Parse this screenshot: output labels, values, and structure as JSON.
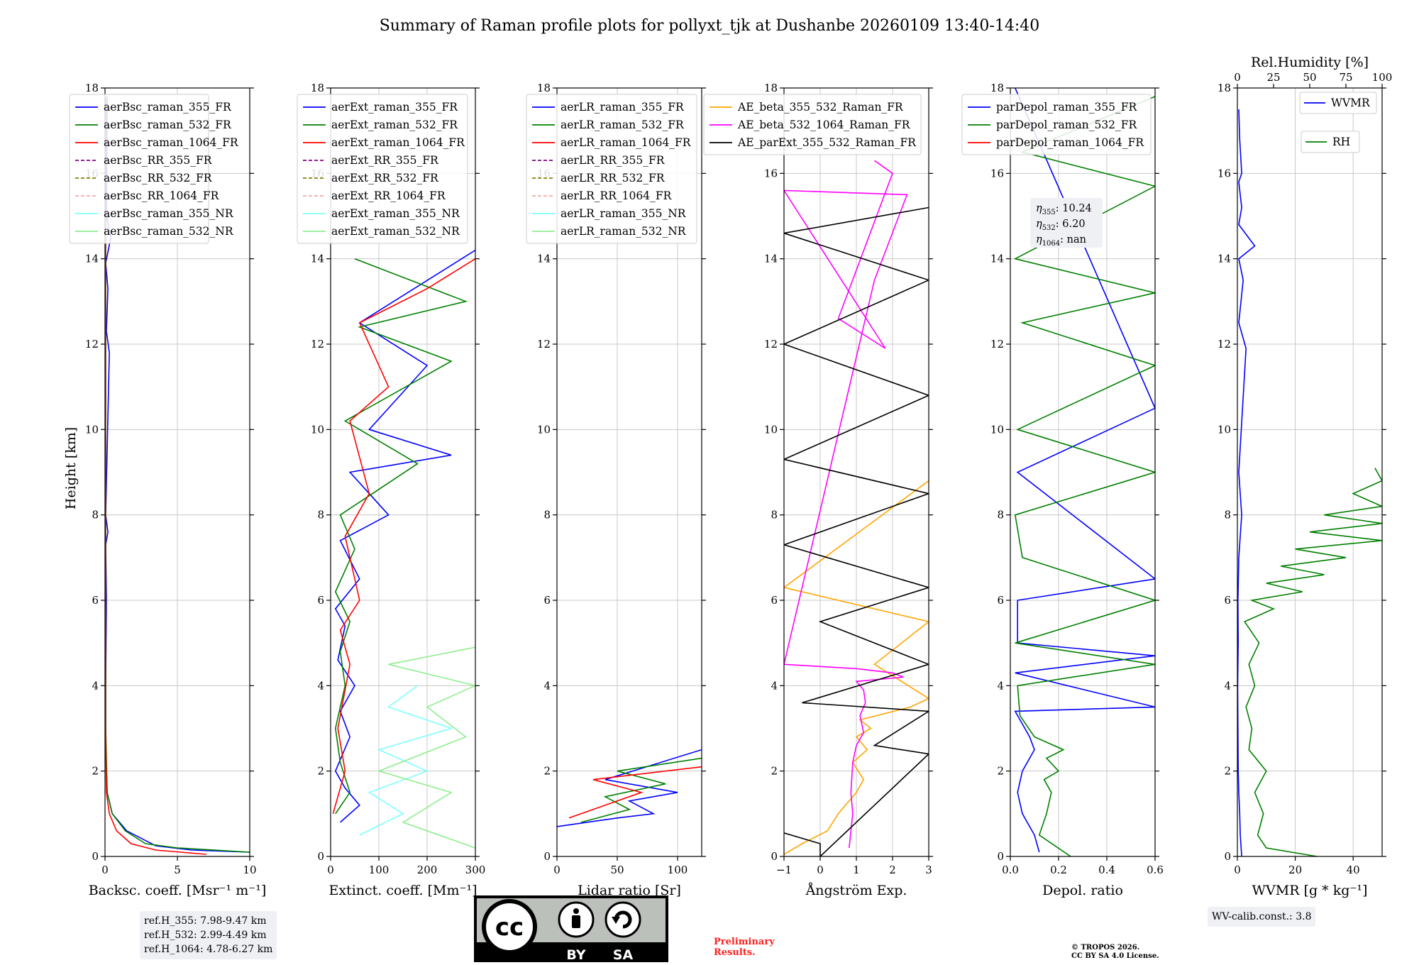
{
  "title": "Summary of Raman profile plots for pollyxt_tjk at Dushanbe 20260109 13:40-14:40",
  "y_axis_label": "Height [km]",
  "chart_data": [
    {
      "id": "bsc",
      "type": "line",
      "xlabel": "Backsc. coeff. [Msr⁻¹ m⁻¹]",
      "xlim": [
        0,
        10
      ],
      "xticks": [
        0,
        5,
        10
      ],
      "ylim": [
        0,
        18
      ],
      "yticks": [
        0,
        2,
        4,
        6,
        8,
        10,
        12,
        14,
        16,
        18
      ],
      "legend": [
        {
          "name": "aerBsc_raman_355_FR",
          "color": "#0000ff",
          "dash": false
        },
        {
          "name": "aerBsc_raman_532_FR",
          "color": "#008000",
          "dash": false
        },
        {
          "name": "aerBsc_raman_1064_FR",
          "color": "#ff0000",
          "dash": false
        },
        {
          "name": "aerBsc_RR_355_FR",
          "color": "#800080",
          "dash": true
        },
        {
          "name": "aerBsc_RR_532_FR",
          "color": "#808000",
          "dash": true
        },
        {
          "name": "aerBsc_RR_1064_FR",
          "color": "#f4a6a6",
          "dash": true
        },
        {
          "name": "aerBsc_raman_355_NR",
          "color": "#7fffff",
          "dash": false
        },
        {
          "name": "aerBsc_raman_532_NR",
          "color": "#90ee90",
          "dash": false
        }
      ],
      "series": [
        {
          "name": "aerBsc_raman_355_FR",
          "color": "#0000ff",
          "x": [
            10,
            6,
            3.5,
            1.5,
            0.5,
            0.15,
            0.05,
            0.05,
            0.1,
            0.05,
            0.2,
            0.05,
            0.3,
            0.1,
            0.2,
            0.05,
            0.4,
            0.1,
            0.15
          ],
          "y": [
            0.1,
            0.15,
            0.25,
            0.6,
            1.0,
            1.5,
            2.5,
            4.0,
            6.0,
            7.3,
            7.6,
            8.0,
            11.8,
            12.3,
            13.3,
            13.9,
            14.5,
            15.0,
            17.8
          ]
        },
        {
          "name": "aerBsc_raman_532_FR",
          "color": "#008000",
          "x": [
            10,
            5,
            2.8,
            1.4,
            0.5,
            0.15,
            0.05,
            0.05
          ],
          "y": [
            0.1,
            0.2,
            0.3,
            0.6,
            1.0,
            1.5,
            3.0,
            17.8
          ]
        },
        {
          "name": "aerBsc_raman_1064_FR",
          "color": "#ff0000",
          "x": [
            7,
            3.5,
            1.8,
            0.8,
            0.3,
            0.1,
            0.03,
            0.03
          ],
          "y": [
            0.05,
            0.15,
            0.3,
            0.6,
            1.0,
            1.5,
            3.0,
            17.8
          ]
        }
      ]
    },
    {
      "id": "ext",
      "type": "line",
      "xlabel": "Extinct. coeff. [Mm⁻¹]",
      "xlim": [
        0,
        300
      ],
      "xticks": [
        0,
        100,
        200,
        300
      ],
      "ylim": [
        0,
        18
      ],
      "yticks": [
        0,
        2,
        4,
        6,
        8,
        10,
        12,
        14,
        16,
        18
      ],
      "legend": [
        {
          "name": "aerExt_raman_355_FR",
          "color": "#0000ff",
          "dash": false
        },
        {
          "name": "aerExt_raman_532_FR",
          "color": "#008000",
          "dash": false
        },
        {
          "name": "aerExt_raman_1064_FR",
          "color": "#ff0000",
          "dash": false
        },
        {
          "name": "aerExt_RR_355_FR",
          "color": "#800080",
          "dash": true
        },
        {
          "name": "aerExt_RR_532_FR",
          "color": "#808000",
          "dash": true
        },
        {
          "name": "aerExt_RR_1064_FR",
          "color": "#f4a6a6",
          "dash": true
        },
        {
          "name": "aerExt_raman_355_NR",
          "color": "#7fffff",
          "dash": false
        },
        {
          "name": "aerExt_raman_532_NR",
          "color": "#90ee90",
          "dash": false
        }
      ],
      "series": [
        {
          "name": "aerExt_raman_355_FR",
          "color": "#0000ff",
          "x": [
            20,
            60,
            30,
            10,
            40,
            20,
            50,
            15,
            30,
            10,
            60,
            20,
            120,
            40,
            250,
            80,
            200,
            60,
            300
          ],
          "y": [
            0.8,
            1.2,
            1.6,
            2.0,
            2.8,
            3.4,
            4.0,
            4.6,
            5.4,
            5.8,
            6.5,
            7.4,
            8.0,
            9.0,
            9.4,
            10.0,
            11.5,
            12.5,
            14.2
          ]
        },
        {
          "name": "aerExt_raman_532_FR",
          "color": "#008000",
          "x": [
            10,
            40,
            20,
            10,
            30,
            20,
            40,
            10,
            50,
            20,
            180,
            30,
            250,
            60,
            280,
            50
          ],
          "y": [
            1.0,
            1.5,
            2.2,
            3.0,
            4.0,
            4.8,
            5.5,
            6.2,
            7.2,
            8.0,
            9.2,
            10.2,
            11.6,
            12.4,
            13.0,
            14.0
          ]
        },
        {
          "name": "aerExt_raman_1064_FR",
          "color": "#ff0000",
          "x": [
            5,
            30,
            15,
            40,
            20,
            60,
            30,
            80,
            40,
            120,
            60,
            200,
            300
          ],
          "y": [
            1.0,
            2.0,
            3.0,
            4.5,
            5.3,
            6.0,
            7.5,
            8.5,
            10.2,
            11.0,
            12.5,
            13.3,
            14.0
          ]
        },
        {
          "name": "aerExt_raman_355_NR",
          "color": "#7fffff",
          "x": [
            60,
            150,
            80,
            200,
            100,
            250,
            120,
            180
          ],
          "y": [
            0.5,
            1.0,
            1.5,
            2.0,
            2.5,
            3.0,
            3.5,
            4.0
          ]
        },
        {
          "name": "aerExt_raman_532_NR",
          "color": "#90ee90",
          "x": [
            300,
            150,
            250,
            100,
            280,
            200,
            300,
            120,
            300
          ],
          "y": [
            0.2,
            0.8,
            1.5,
            2.0,
            2.8,
            3.5,
            4.0,
            4.5,
            4.9
          ]
        }
      ]
    },
    {
      "id": "lr",
      "type": "line",
      "xlabel": "Lidar ratio [Sr]",
      "xlim": [
        0,
        120
      ],
      "xticks": [
        0,
        50,
        100
      ],
      "ylim": [
        0,
        18
      ],
      "yticks": [
        0,
        2,
        4,
        6,
        8,
        10,
        12,
        14,
        16,
        18
      ],
      "legend": [
        {
          "name": "aerLR_raman_355_FR",
          "color": "#0000ff",
          "dash": false
        },
        {
          "name": "aerLR_raman_532_FR",
          "color": "#008000",
          "dash": false
        },
        {
          "name": "aerLR_raman_1064_FR",
          "color": "#ff0000",
          "dash": false
        },
        {
          "name": "aerLR_RR_355_FR",
          "color": "#800080",
          "dash": true
        },
        {
          "name": "aerLR_RR_532_FR",
          "color": "#808000",
          "dash": true
        },
        {
          "name": "aerLR_RR_1064_FR",
          "color": "#f4a6a6",
          "dash": true
        },
        {
          "name": "aerLR_raman_355_NR",
          "color": "#7fffff",
          "dash": false
        },
        {
          "name": "aerLR_raman_532_NR",
          "color": "#90ee90",
          "dash": false
        }
      ],
      "series": [
        {
          "name": "aerLR_raman_355_FR",
          "color": "#0000ff",
          "x": [
            0,
            50,
            80,
            60,
            100,
            40,
            120
          ],
          "y": [
            0.7,
            0.9,
            1.0,
            1.3,
            1.5,
            1.8,
            2.5
          ]
        },
        {
          "name": "aerLR_raman_532_FR",
          "color": "#008000",
          "x": [
            20,
            60,
            40,
            90,
            50,
            120
          ],
          "y": [
            0.8,
            1.1,
            1.4,
            1.7,
            2.0,
            2.3
          ]
        },
        {
          "name": "aerLR_raman_1064_FR",
          "color": "#ff0000",
          "x": [
            10,
            40,
            70,
            30,
            120
          ],
          "y": [
            0.9,
            1.2,
            1.5,
            1.8,
            2.1
          ]
        }
      ]
    },
    {
      "id": "ae",
      "type": "line",
      "xlabel": "Ångström Exp.",
      "xlim": [
        -1,
        3
      ],
      "xticks": [
        -1,
        0,
        1,
        2,
        3
      ],
      "ylim": [
        0,
        18
      ],
      "yticks": [
        0,
        2,
        4,
        6,
        8,
        10,
        12,
        14,
        16,
        18
      ],
      "legend": [
        {
          "name": "AE_beta_355_532_Raman_FR",
          "color": "#ffa500",
          "dash": false
        },
        {
          "name": "AE_beta_532_1064_Raman_FR",
          "color": "#ff00ff",
          "dash": false
        },
        {
          "name": "AE_parExt_355_532_Raman_FR",
          "color": "#000000",
          "dash": false
        }
      ],
      "series": [
        {
          "name": "AE_beta_355_532_Raman_FR",
          "color": "#ffa500",
          "x": [
            -1,
            -0.5,
            0.2,
            0.5,
            1.0,
            1.2,
            0.9,
            1.3,
            1.0,
            1.4,
            1.1,
            2.5,
            3.0,
            1.5,
            3.0,
            -1,
            3.0
          ],
          "y": [
            0.05,
            0.3,
            0.6,
            1.0,
            1.5,
            1.8,
            2.2,
            2.5,
            2.8,
            3.0,
            3.2,
            3.5,
            3.7,
            4.5,
            5.5,
            6.3,
            8.8
          ]
        },
        {
          "name": "AE_beta_532_1064_Raman_FR",
          "color": "#ff00ff",
          "x": [
            0.8,
            0.9,
            0.85,
            0.9,
            1.0,
            1.2,
            1.1,
            1.25,
            1.2,
            1.0,
            2.3,
            2.0,
            1.0,
            -1,
            1.5,
            2.4,
            -1,
            1.8,
            0.5,
            2.0,
            1.5
          ],
          "y": [
            0.2,
            1.0,
            1.5,
            2.2,
            2.6,
            2.9,
            3.3,
            3.6,
            3.9,
            4.1,
            4.2,
            4.3,
            4.4,
            4.5,
            13.5,
            15.5,
            15.6,
            11.9,
            12.6,
            16.0,
            16.3
          ]
        },
        {
          "name": "AE_parExt_355_532_Raman_FR",
          "color": "#000000",
          "x": [
            -1,
            0,
            0,
            3,
            1.5,
            3,
            -0.5,
            3,
            0,
            3,
            -1,
            3,
            -1,
            3,
            -1,
            3,
            -1,
            3
          ],
          "y": [
            0.55,
            0.3,
            0.0,
            2.4,
            2.6,
            3.4,
            3.6,
            4.5,
            5.5,
            6.3,
            7.3,
            8.5,
            9.3,
            10.8,
            12.0,
            13.5,
            14.6,
            15.2
          ]
        }
      ]
    },
    {
      "id": "depol",
      "type": "line",
      "xlabel": "Depol. ratio",
      "xlim": [
        0,
        0.6
      ],
      "xticks": [
        0.0,
        0.2,
        0.4,
        0.6
      ],
      "xtick_labels": [
        "0.0",
        "0.2",
        "0.4",
        "0.6"
      ],
      "ylim": [
        0,
        18
      ],
      "yticks": [
        0,
        2,
        4,
        6,
        8,
        10,
        12,
        14,
        16,
        18
      ],
      "legend": [
        {
          "name": "parDepol_raman_355_FR",
          "color": "#0000ff",
          "dash": false
        },
        {
          "name": "parDepol_raman_532_FR",
          "color": "#008000",
          "dash": false
        },
        {
          "name": "parDepol_raman_1064_FR",
          "color": "#ff0000",
          "dash": false
        }
      ],
      "series": [
        {
          "name": "parDepol_raman_355_FR",
          "color": "#0000ff",
          "x": [
            0.12,
            0.1,
            0.05,
            0.03,
            0.05,
            0.08,
            0.1,
            0.08,
            0.02,
            0.6,
            0.02,
            0.6,
            0.03,
            0.03,
            0.6,
            0.03,
            0.6,
            0.02
          ],
          "y": [
            0.1,
            0.5,
            1.0,
            1.5,
            2.0,
            2.3,
            2.5,
            2.8,
            3.4,
            3.5,
            4.3,
            4.7,
            5.0,
            6.0,
            6.5,
            9.0,
            10.5,
            18.0
          ]
        },
        {
          "name": "parDepol_raman_532_FR",
          "color": "#008000",
          "x": [
            0.25,
            0.12,
            0.15,
            0.17,
            0.14,
            0.2,
            0.15,
            0.22,
            0.1,
            0.04,
            0.03,
            0.6,
            0.02,
            0.6,
            0.05,
            0.02,
            0.6,
            0.03,
            0.6,
            0.05,
            0.6,
            0.02,
            0.6,
            0.05,
            0.6
          ],
          "y": [
            0.0,
            0.5,
            1.0,
            1.5,
            1.8,
            2.0,
            2.3,
            2.5,
            2.8,
            3.3,
            4.0,
            4.5,
            5.0,
            6.0,
            7.0,
            8.0,
            9.0,
            10.0,
            11.5,
            12.5,
            13.2,
            14.0,
            15.7,
            16.5,
            17.8
          ]
        }
      ]
    },
    {
      "id": "wv",
      "type": "line",
      "xlabel": "WVMR [g * kg⁻¹]",
      "top_axis_label": "Rel.Humidity [%]",
      "xlim": [
        0,
        50
      ],
      "xticks": [
        0,
        20,
        40
      ],
      "ylim": [
        0,
        18
      ],
      "yticks": [
        0,
        2,
        4,
        6,
        8,
        10,
        12,
        14,
        16,
        18
      ],
      "top_xlim": [
        0,
        100
      ],
      "top_xticks": [
        0,
        25,
        50,
        75,
        100
      ],
      "legend_wvmr": {
        "name": "WVMR",
        "color": "#0000ff"
      },
      "legend_rh": {
        "name": "RH",
        "color": "#008000"
      },
      "series": [
        {
          "name": "WVMR",
          "color": "#0000ff",
          "x": [
            1.5,
            1.0,
            0.8,
            0.5,
            0.3,
            0.2,
            0.1,
            0.3,
            0.2,
            0.5,
            1.5,
            0.5,
            3,
            0.5,
            2,
            0.5,
            6,
            0.5,
            1.5,
            0.5,
            1.5,
            0.8,
            0.5
          ],
          "y": [
            0.0,
            0.5,
            1.0,
            1.5,
            2.0,
            3.0,
            4.0,
            5.0,
            6.0,
            7.0,
            8.0,
            9.0,
            11.9,
            12.5,
            13.5,
            14.0,
            14.3,
            14.8,
            15.2,
            15.8,
            16.0,
            16.8,
            17.5
          ]
        },
        {
          "name": "RH",
          "color": "#008000",
          "rh_percent": [
            55,
            20,
            14,
            18,
            12,
            20,
            8,
            10,
            6,
            12,
            8,
            15,
            5,
            25,
            10,
            45,
            20,
            60,
            30,
            75,
            40,
            100,
            50,
            100,
            60,
            100,
            80,
            100,
            95
          ],
          "y": [
            0.0,
            0.2,
            0.5,
            1.0,
            1.5,
            2.0,
            2.5,
            3.0,
            3.5,
            4.0,
            4.5,
            5.0,
            5.5,
            5.8,
            6.0,
            6.2,
            6.4,
            6.6,
            6.8,
            7.0,
            7.2,
            7.4,
            7.6,
            7.8,
            8.0,
            8.2,
            8.5,
            8.8,
            9.1
          ]
        }
      ]
    }
  ],
  "annotations": {
    "eta_lines": [
      {
        "sym": "η",
        "sub": "355",
        "val": ": 10.24"
      },
      {
        "sym": "η",
        "sub": "532",
        "val": ": 6.20"
      },
      {
        "sym": "η",
        "sub": "1064",
        "val": ": nan"
      }
    ],
    "ref_heights": [
      "ref.H_355: 7.98-9.47 km",
      "ref.H_532: 2.99-4.49 km",
      "ref.H_1064: 4.78-6.27 km"
    ],
    "wv_calib": "WV-calib.const.: 3.8",
    "preliminary": [
      "Preliminary",
      "Results."
    ],
    "copyright": [
      "© TROPOS 2026.",
      "CC BY SA 4.0 License."
    ],
    "cc_badge": {
      "by": "BY",
      "sa": "SA",
      "cc": "cc"
    }
  }
}
